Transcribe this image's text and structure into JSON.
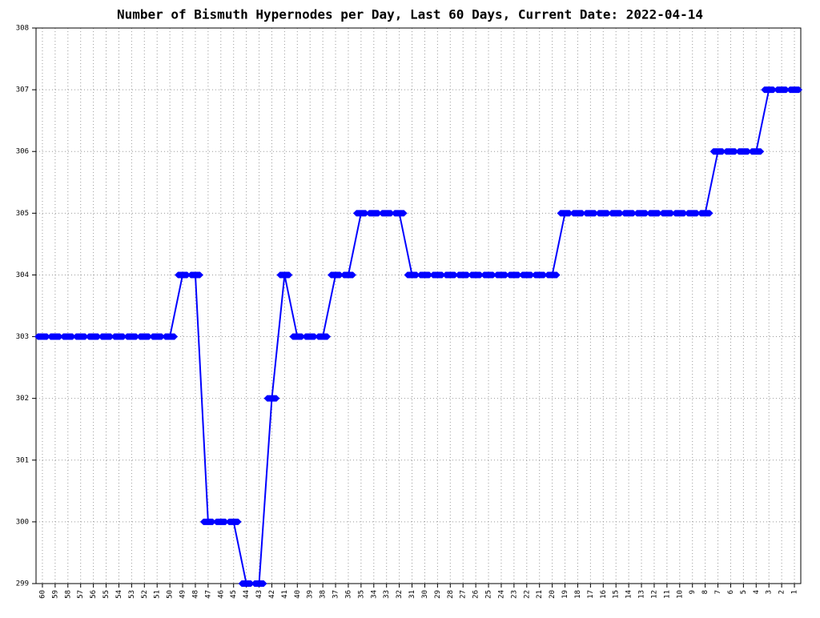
{
  "chart_data": {
    "type": "line",
    "title": "Number of Bismuth Hypernodes per Day, Last 60 Days, Current Date: 2022-04-14",
    "categories": [
      "60",
      "59",
      "58",
      "57",
      "56",
      "55",
      "54",
      "53",
      "52",
      "51",
      "50",
      "49",
      "48",
      "47",
      "46",
      "45",
      "44",
      "43",
      "42",
      "41",
      "40",
      "39",
      "38",
      "37",
      "36",
      "35",
      "34",
      "33",
      "32",
      "31",
      "30",
      "29",
      "28",
      "27",
      "26",
      "25",
      "24",
      "23",
      "22",
      "21",
      "20",
      "19",
      "18",
      "17",
      "16",
      "15",
      "14",
      "13",
      "12",
      "11",
      "10",
      "9",
      "8",
      "7",
      "6",
      "5",
      "4",
      "3",
      "2",
      "1"
    ],
    "values": [
      303,
      303,
      303,
      303,
      303,
      303,
      303,
      303,
      303,
      303,
      303,
      304,
      304,
      300,
      300,
      300,
      299,
      299,
      302,
      304,
      303,
      303,
      303,
      304,
      304,
      305,
      305,
      305,
      305,
      304,
      304,
      304,
      304,
      304,
      304,
      304,
      304,
      304,
      304,
      304,
      304,
      305,
      305,
      305,
      305,
      305,
      305,
      305,
      305,
      305,
      305,
      305,
      305,
      306,
      306,
      306,
      306,
      307,
      307,
      307
    ],
    "color": "#0000ff",
    "ylim": [
      299,
      308
    ],
    "yticks": [
      299,
      300,
      301,
      302,
      303,
      304,
      305,
      306,
      307,
      308
    ],
    "grid": true
  }
}
